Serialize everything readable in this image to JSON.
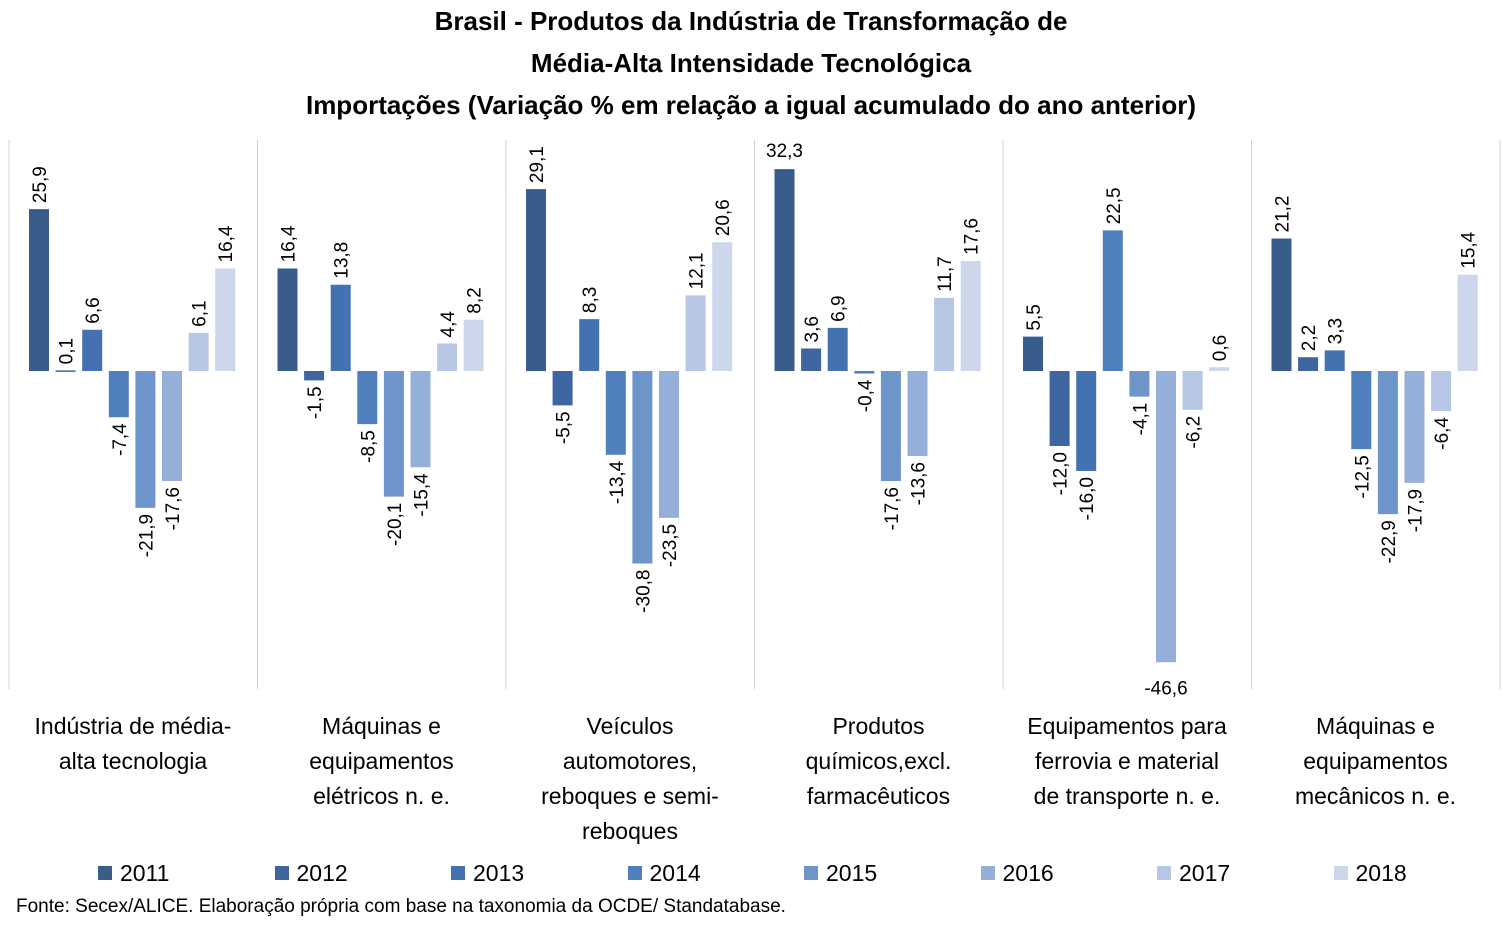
{
  "chart_data": {
    "type": "bar",
    "title_lines": [
      "Brasil - Produtos da Indústria de Transformação de",
      "Média-Alta Intensidade Tecnológica",
      "Importações (Variação % em relação a igual acumulado do ano anterior)"
    ],
    "categories": [
      [
        "Indústria de média-",
        "alta tecnologia"
      ],
      [
        "Máquinas e",
        "equipamentos",
        "elétricos n. e."
      ],
      [
        "Veículos",
        "automotores,",
        "reboques e semi-",
        "reboques"
      ],
      [
        "Produtos",
        "químicos,excl.",
        "farmacêuticos"
      ],
      [
        "Equipamentos para",
        "ferrovia e material",
        "de transporte n. e."
      ],
      [
        "Máquinas e",
        "equipamentos",
        "mecânicos  n. e."
      ]
    ],
    "series": [
      {
        "name": "2011",
        "color": "#385d8a",
        "values": [
          25.9,
          16.4,
          29.1,
          32.3,
          5.5,
          21.2
        ]
      },
      {
        "name": "2012",
        "color": "#3e65a0",
        "values": [
          0.1,
          -1.5,
          -5.5,
          3.6,
          -12.0,
          2.2
        ]
      },
      {
        "name": "2013",
        "color": "#4472b0",
        "values": [
          6.6,
          13.8,
          8.3,
          6.9,
          -16.0,
          3.3
        ]
      },
      {
        "name": "2014",
        "color": "#4f7fbd",
        "values": [
          -7.4,
          -8.5,
          -13.4,
          -0.4,
          22.5,
          -12.5
        ]
      },
      {
        "name": "2015",
        "color": "#6d95ca",
        "values": [
          -21.9,
          -20.1,
          -30.8,
          -17.6,
          -4.1,
          -22.9
        ]
      },
      {
        "name": "2016",
        "color": "#95b0d8",
        "values": [
          -17.6,
          -15.4,
          -23.5,
          -13.6,
          -46.6,
          -17.9
        ]
      },
      {
        "name": "2017",
        "color": "#b6c6e4",
        "values": [
          6.1,
          4.4,
          12.1,
          11.7,
          -6.2,
          -6.4
        ]
      },
      {
        "name": "2018",
        "color": "#ccd7eb",
        "values": [
          16.4,
          8.2,
          20.6,
          17.6,
          0.6,
          15.4
        ]
      }
    ],
    "ylim": [
      -50,
      35
    ],
    "grid": false,
    "legend_position": "bottom",
    "decimal_separator": ","
  },
  "source_note": "Fonte: Secex/ALICE. Elaboração própria com base na taxonomia da OCDE/ Standatabase."
}
